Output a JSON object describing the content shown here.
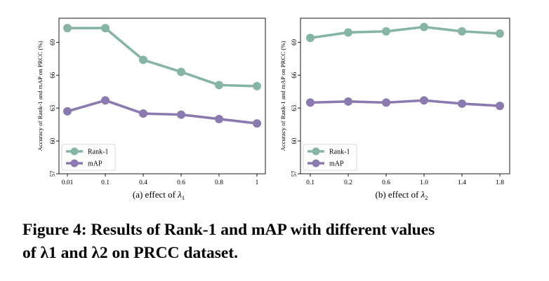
{
  "chart_data": [
    {
      "type": "line",
      "categories": [
        "0.01",
        "0.1",
        "0.4",
        "0.6",
        "0.8",
        "1"
      ],
      "series": [
        {
          "name": "Rank-1",
          "values": [
            70.3,
            70.3,
            67.4,
            66.3,
            65.1,
            65.0
          ],
          "color": "#86b5a6"
        },
        {
          "name": "mAP",
          "values": [
            62.7,
            63.7,
            62.5,
            62.4,
            62.0,
            61.6
          ],
          "color": "#8a7ab0"
        }
      ],
      "ylabel": "Accuracy of Rank-1 and mAP on PRCC (%)",
      "xlabel_prefix": "(a)  effect of ",
      "xlabel_symbol": "λ",
      "xlabel_sub": "1",
      "yticks": [
        57,
        60,
        63,
        66,
        69
      ],
      "ylim": [
        57,
        71.2
      ],
      "grid": false,
      "legend": "lower-left"
    },
    {
      "type": "line",
      "categories": [
        "0.1",
        "0.2",
        "0.6",
        "1.0",
        "1.4",
        "1.8"
      ],
      "series": [
        {
          "name": "Rank-1",
          "values": [
            69.4,
            69.9,
            70.0,
            70.4,
            70.0,
            69.8
          ],
          "color": "#86b5a6"
        },
        {
          "name": "mAP",
          "values": [
            63.5,
            63.6,
            63.5,
            63.7,
            63.4,
            63.2
          ],
          "color": "#8a7ab0"
        }
      ],
      "ylabel": "Accuracy of Rank-1 and mAP on PRCC (%)",
      "xlabel_prefix": "(b)  effect of ",
      "xlabel_symbol": "λ",
      "xlabel_sub": "2",
      "yticks": [
        57,
        60,
        63,
        66,
        69
      ],
      "ylim": [
        57,
        71.2
      ],
      "grid": false,
      "legend": "lower-left"
    }
  ],
  "caption": {
    "line1": "Figure 4: Results of Rank-1 and mAP with different values",
    "line2": "of λ1 and λ2 on PRCC dataset."
  }
}
